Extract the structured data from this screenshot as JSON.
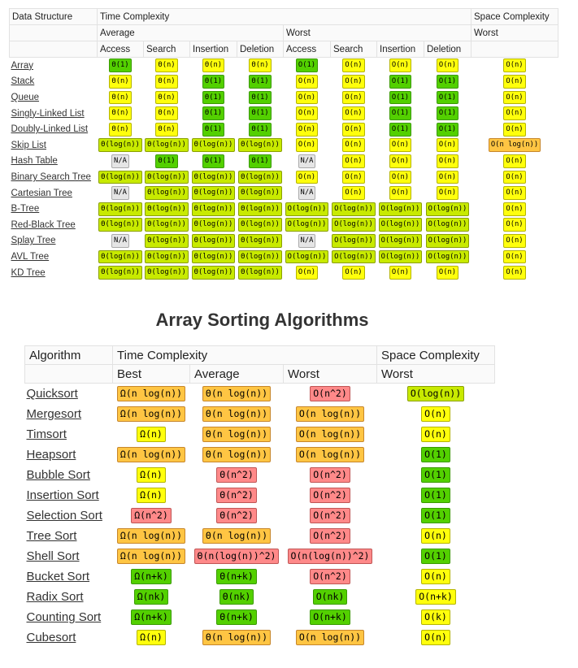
{
  "data_structures": {
    "headers": {
      "data_structure": "Data Structure",
      "time_complexity": "Time Complexity",
      "space_complexity": "Space Complexity",
      "average": "Average",
      "worst": "Worst",
      "space_worst": "Worst",
      "ops": [
        "Access",
        "Search",
        "Insertion",
        "Deletion",
        "Access",
        "Search",
        "Insertion",
        "Deletion"
      ]
    },
    "rows": [
      {
        "name": "Array",
        "cells": [
          "Θ(1)",
          "Θ(n)",
          "Θ(n)",
          "Θ(n)",
          "O(1)",
          "O(n)",
          "O(n)",
          "O(n)",
          "O(n)"
        ]
      },
      {
        "name": "Stack",
        "cells": [
          "Θ(n)",
          "Θ(n)",
          "Θ(1)",
          "Θ(1)",
          "O(n)",
          "O(n)",
          "O(1)",
          "O(1)",
          "O(n)"
        ]
      },
      {
        "name": "Queue",
        "cells": [
          "Θ(n)",
          "Θ(n)",
          "Θ(1)",
          "Θ(1)",
          "O(n)",
          "O(n)",
          "O(1)",
          "O(1)",
          "O(n)"
        ]
      },
      {
        "name": "Singly-Linked List",
        "cells": [
          "Θ(n)",
          "Θ(n)",
          "Θ(1)",
          "Θ(1)",
          "O(n)",
          "O(n)",
          "O(1)",
          "O(1)",
          "O(n)"
        ]
      },
      {
        "name": "Doubly-Linked List",
        "cells": [
          "Θ(n)",
          "Θ(n)",
          "Θ(1)",
          "Θ(1)",
          "O(n)",
          "O(n)",
          "O(1)",
          "O(1)",
          "O(n)"
        ]
      },
      {
        "name": "Skip List",
        "cells": [
          "Θ(log(n))",
          "Θ(log(n))",
          "Θ(log(n))",
          "Θ(log(n))",
          "O(n)",
          "O(n)",
          "O(n)",
          "O(n)",
          "O(n log(n))"
        ]
      },
      {
        "name": "Hash Table",
        "cells": [
          "N/A",
          "Θ(1)",
          "Θ(1)",
          "Θ(1)",
          "N/A",
          "O(n)",
          "O(n)",
          "O(n)",
          "O(n)"
        ]
      },
      {
        "name": "Binary Search Tree",
        "cells": [
          "Θ(log(n))",
          "Θ(log(n))",
          "Θ(log(n))",
          "Θ(log(n))",
          "O(n)",
          "O(n)",
          "O(n)",
          "O(n)",
          "O(n)"
        ]
      },
      {
        "name": "Cartesian Tree",
        "cells": [
          "N/A",
          "Θ(log(n))",
          "Θ(log(n))",
          "Θ(log(n))",
          "N/A",
          "O(n)",
          "O(n)",
          "O(n)",
          "O(n)"
        ]
      },
      {
        "name": "B-Tree",
        "cells": [
          "Θ(log(n))",
          "Θ(log(n))",
          "Θ(log(n))",
          "Θ(log(n))",
          "O(log(n))",
          "O(log(n))",
          "O(log(n))",
          "O(log(n))",
          "O(n)"
        ]
      },
      {
        "name": "Red-Black Tree",
        "cells": [
          "Θ(log(n))",
          "Θ(log(n))",
          "Θ(log(n))",
          "Θ(log(n))",
          "O(log(n))",
          "O(log(n))",
          "O(log(n))",
          "O(log(n))",
          "O(n)"
        ]
      },
      {
        "name": "Splay Tree",
        "cells": [
          "N/A",
          "Θ(log(n))",
          "Θ(log(n))",
          "Θ(log(n))",
          "N/A",
          "O(log(n))",
          "O(log(n))",
          "O(log(n))",
          "O(n)"
        ]
      },
      {
        "name": "AVL Tree",
        "cells": [
          "Θ(log(n))",
          "Θ(log(n))",
          "Θ(log(n))",
          "Θ(log(n))",
          "O(log(n))",
          "O(log(n))",
          "O(log(n))",
          "O(log(n))",
          "O(n)"
        ]
      },
      {
        "name": "KD Tree",
        "cells": [
          "Θ(log(n))",
          "Θ(log(n))",
          "Θ(log(n))",
          "Θ(log(n))",
          "O(n)",
          "O(n)",
          "O(n)",
          "O(n)",
          "O(n)"
        ]
      }
    ],
    "colors": [
      [
        "green-dark",
        "yellow",
        "yellow",
        "yellow",
        "green-dark",
        "yellow",
        "yellow",
        "yellow",
        "yellow"
      ],
      [
        "yellow",
        "yellow",
        "green-dark",
        "green-dark",
        "yellow",
        "yellow",
        "green-dark",
        "green-dark",
        "yellow"
      ],
      [
        "yellow",
        "yellow",
        "green-dark",
        "green-dark",
        "yellow",
        "yellow",
        "green-dark",
        "green-dark",
        "yellow"
      ],
      [
        "yellow",
        "yellow",
        "green-dark",
        "green-dark",
        "yellow",
        "yellow",
        "green-dark",
        "green-dark",
        "yellow"
      ],
      [
        "yellow",
        "yellow",
        "green-dark",
        "green-dark",
        "yellow",
        "yellow",
        "green-dark",
        "green-dark",
        "yellow"
      ],
      [
        "green",
        "green",
        "green",
        "green",
        "yellow",
        "yellow",
        "yellow",
        "yellow",
        "orange"
      ],
      [
        "gray",
        "green-dark",
        "green-dark",
        "green-dark",
        "gray",
        "yellow",
        "yellow",
        "yellow",
        "yellow"
      ],
      [
        "green",
        "green",
        "green",
        "green",
        "yellow",
        "yellow",
        "yellow",
        "yellow",
        "yellow"
      ],
      [
        "gray",
        "green",
        "green",
        "green",
        "gray",
        "yellow",
        "yellow",
        "yellow",
        "yellow"
      ],
      [
        "green",
        "green",
        "green",
        "green",
        "green",
        "green",
        "green",
        "green",
        "yellow"
      ],
      [
        "green",
        "green",
        "green",
        "green",
        "green",
        "green",
        "green",
        "green",
        "yellow"
      ],
      [
        "gray",
        "green",
        "green",
        "green",
        "gray",
        "green",
        "green",
        "green",
        "yellow"
      ],
      [
        "green",
        "green",
        "green",
        "green",
        "green",
        "green",
        "green",
        "green",
        "yellow"
      ],
      [
        "green",
        "green",
        "green",
        "green",
        "yellow",
        "yellow",
        "yellow",
        "yellow",
        "yellow"
      ]
    ]
  },
  "sorting": {
    "title": "Array Sorting Algorithms",
    "headers": {
      "algorithm": "Algorithm",
      "time_complexity": "Time Complexity",
      "space_complexity": "Space Complexity",
      "best": "Best",
      "average": "Average",
      "worst": "Worst",
      "space_worst": "Worst"
    },
    "rows": [
      {
        "name": "Quicksort",
        "cells": [
          "Ω(n log(n))",
          "Θ(n log(n))",
          "O(n^2)",
          "O(log(n))"
        ]
      },
      {
        "name": "Mergesort",
        "cells": [
          "Ω(n log(n))",
          "Θ(n log(n))",
          "O(n log(n))",
          "O(n)"
        ]
      },
      {
        "name": "Timsort",
        "cells": [
          "Ω(n)",
          "Θ(n log(n))",
          "O(n log(n))",
          "O(n)"
        ]
      },
      {
        "name": "Heapsort",
        "cells": [
          "Ω(n log(n))",
          "Θ(n log(n))",
          "O(n log(n))",
          "O(1)"
        ]
      },
      {
        "name": "Bubble Sort",
        "cells": [
          "Ω(n)",
          "Θ(n^2)",
          "O(n^2)",
          "O(1)"
        ]
      },
      {
        "name": "Insertion Sort",
        "cells": [
          "Ω(n)",
          "Θ(n^2)",
          "O(n^2)",
          "O(1)"
        ]
      },
      {
        "name": "Selection Sort",
        "cells": [
          "Ω(n^2)",
          "Θ(n^2)",
          "O(n^2)",
          "O(1)"
        ]
      },
      {
        "name": "Tree Sort",
        "cells": [
          "Ω(n log(n))",
          "Θ(n log(n))",
          "O(n^2)",
          "O(n)"
        ]
      },
      {
        "name": "Shell Sort",
        "cells": [
          "Ω(n log(n))",
          "Θ(n(log(n))^2)",
          "O(n(log(n))^2)",
          "O(1)"
        ]
      },
      {
        "name": "Bucket Sort",
        "cells": [
          "Ω(n+k)",
          "Θ(n+k)",
          "O(n^2)",
          "O(n)"
        ]
      },
      {
        "name": "Radix Sort",
        "cells": [
          "Ω(nk)",
          "Θ(nk)",
          "O(nk)",
          "O(n+k)"
        ]
      },
      {
        "name": "Counting Sort",
        "cells": [
          "Ω(n+k)",
          "Θ(n+k)",
          "O(n+k)",
          "O(k)"
        ]
      },
      {
        "name": "Cubesort",
        "cells": [
          "Ω(n)",
          "Θ(n log(n))",
          "O(n log(n))",
          "O(n)"
        ]
      }
    ],
    "colors": [
      [
        "orange",
        "orange",
        "red",
        "green"
      ],
      [
        "orange",
        "orange",
        "orange",
        "yellow"
      ],
      [
        "yellow",
        "orange",
        "orange",
        "yellow"
      ],
      [
        "orange",
        "orange",
        "orange",
        "green-dark"
      ],
      [
        "yellow",
        "red",
        "red",
        "green-dark"
      ],
      [
        "yellow",
        "red",
        "red",
        "green-dark"
      ],
      [
        "red",
        "red",
        "red",
        "green-dark"
      ],
      [
        "orange",
        "orange",
        "red",
        "yellow"
      ],
      [
        "orange",
        "red",
        "red",
        "green-dark"
      ],
      [
        "green-dark",
        "green-dark",
        "red",
        "yellow"
      ],
      [
        "green-dark",
        "green-dark",
        "green-dark",
        "yellow"
      ],
      [
        "green-dark",
        "green-dark",
        "green-dark",
        "yellow"
      ],
      [
        "yellow",
        "orange",
        "orange",
        "yellow"
      ]
    ]
  }
}
